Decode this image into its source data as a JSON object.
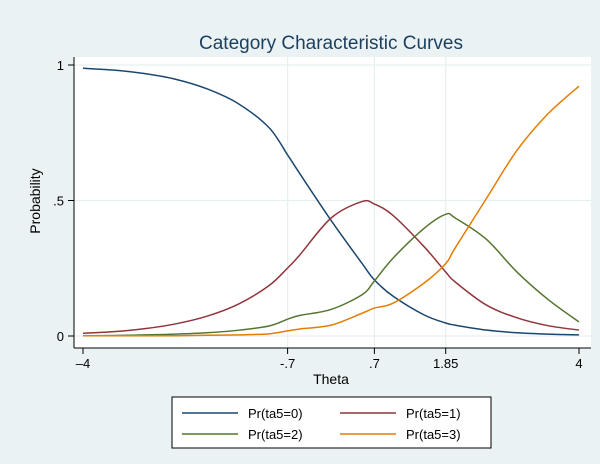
{
  "chart_data": {
    "type": "line",
    "title": "Category Characteristic Curves",
    "xlabel": "Theta",
    "ylabel": "Probability",
    "xlim": [
      -4,
      4
    ],
    "ylim": [
      0,
      1
    ],
    "x_ticks": [
      {
        "value": -4,
        "label": "–4"
      },
      {
        "value": -0.7,
        "label": "-.7"
      },
      {
        "value": 0.7,
        "label": ".7"
      },
      {
        "value": 1.85,
        "label": "1.85"
      },
      {
        "value": 4,
        "label": "4"
      }
    ],
    "y_ticks": [
      {
        "value": 0,
        "label": "0"
      },
      {
        "value": 0.5,
        "label": ".5"
      },
      {
        "value": 1,
        "label": "1"
      }
    ],
    "vertical_gridlines": [
      -0.7,
      0.7,
      1.85
    ],
    "horizontal_gridlines": [
      0,
      0.5,
      1
    ],
    "legend_position": "bottom",
    "x": [
      -4,
      -3.5,
      -3,
      -2.5,
      -2,
      -1.5,
      -1,
      -0.7,
      -0.5,
      0,
      0.5,
      0.7,
      1,
      1.5,
      1.85,
      2,
      2.5,
      3,
      3.5,
      4
    ],
    "series": [
      {
        "name": "Pr(ta5=0)",
        "color": "#1a476f",
        "values": [
          0.988,
          0.981,
          0.968,
          0.947,
          0.912,
          0.858,
          0.769,
          0.668,
          0.598,
          0.427,
          0.268,
          0.207,
          0.147,
          0.078,
          0.048,
          0.04,
          0.022,
          0.012,
          0.007,
          0.004
        ]
      },
      {
        "name": "Pr(ta5=1)",
        "color": "#90353b",
        "values": [
          0.01,
          0.016,
          0.027,
          0.045,
          0.073,
          0.117,
          0.186,
          0.251,
          0.3,
          0.435,
          0.496,
          0.487,
          0.445,
          0.33,
          0.236,
          0.2,
          0.115,
          0.067,
          0.038,
          0.022
        ]
      },
      {
        "name": "Pr(ta5=2)",
        "color": "#55752f",
        "values": [
          0.001,
          0.002,
          0.004,
          0.007,
          0.012,
          0.021,
          0.037,
          0.062,
          0.076,
          0.098,
          0.152,
          0.203,
          0.287,
          0.397,
          0.449,
          0.436,
          0.358,
          0.236,
          0.135,
          0.052
        ]
      },
      {
        "name": "Pr(ta5=3)",
        "color": "#e37e00",
        "values": [
          0.001,
          0.001,
          0.001,
          0.001,
          0.003,
          0.004,
          0.008,
          0.019,
          0.026,
          0.04,
          0.084,
          0.103,
          0.121,
          0.195,
          0.267,
          0.324,
          0.505,
          0.685,
          0.82,
          0.922
        ]
      }
    ]
  }
}
